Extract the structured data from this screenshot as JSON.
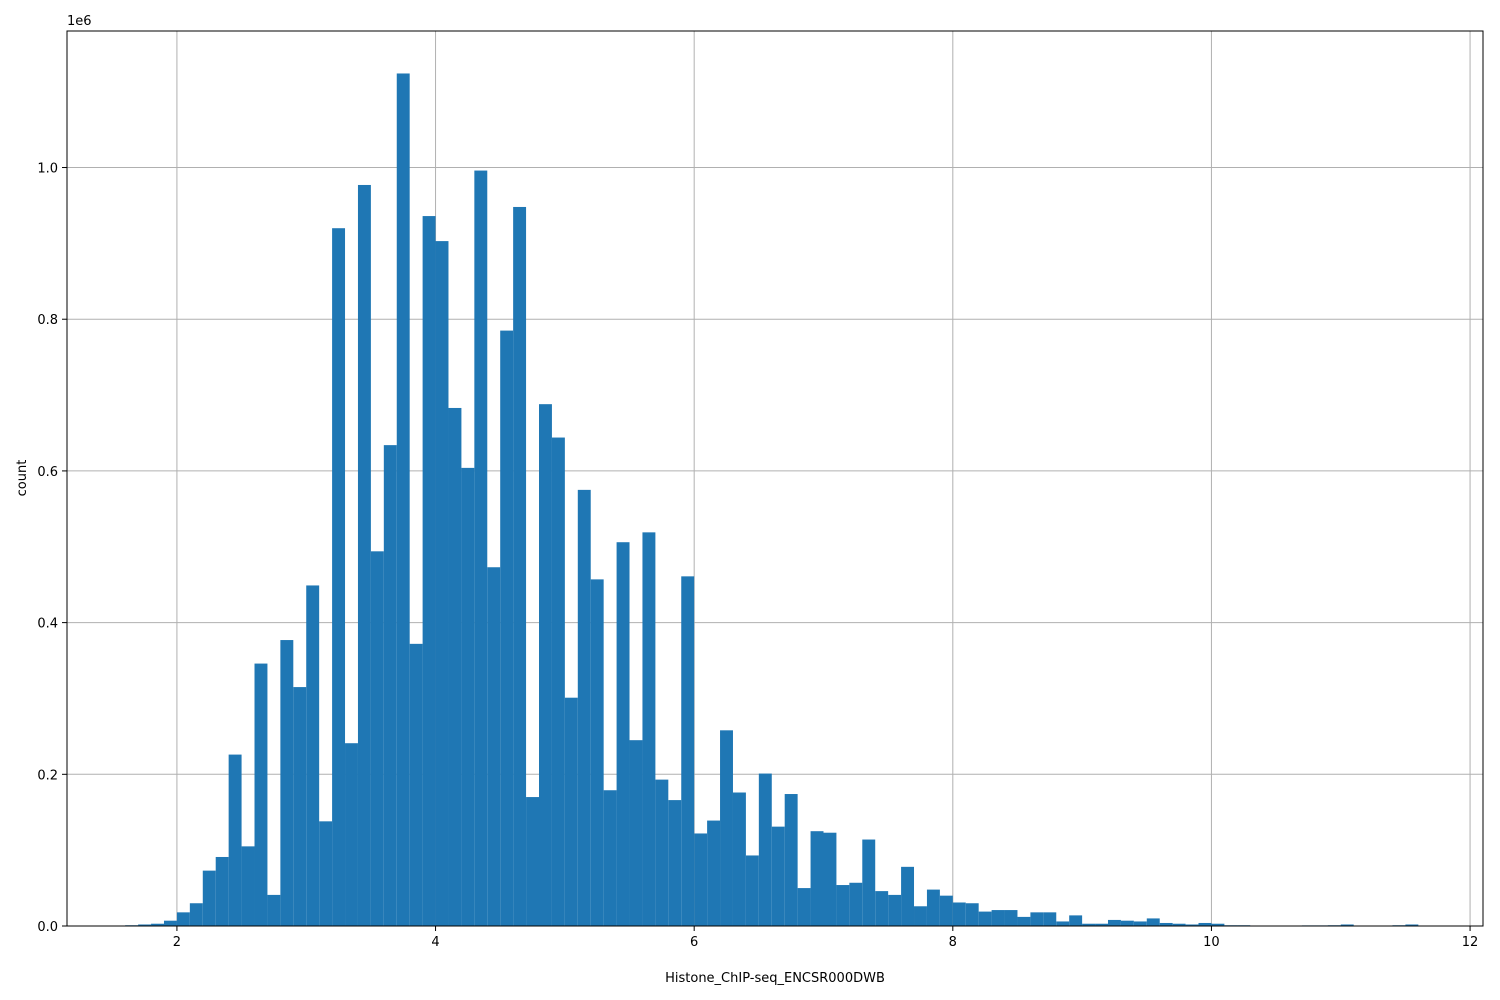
{
  "chart_data": {
    "type": "histogram",
    "title": "",
    "xlabel": "Histone_ChIP-seq_ENCSR000DWB",
    "ylabel": "count",
    "y_offset_label": "1e6",
    "xlim": [
      1.15,
      12.1
    ],
    "ylim": [
      0,
      1.18
    ],
    "y_unit_multiplier": 1000000,
    "grid": true,
    "bar_color": "#1f77b4",
    "x_ticks": [
      2,
      4,
      6,
      8,
      10,
      12
    ],
    "x_tick_labels": [
      "2",
      "4",
      "6",
      "8",
      "10",
      "12"
    ],
    "y_ticks": [
      0,
      0.2,
      0.4,
      0.6,
      0.8,
      1.0
    ],
    "y_tick_labels": [
      "0.0",
      "0.2",
      "0.4",
      "0.6",
      "0.8",
      "1.0"
    ],
    "bin_start": 1.6,
    "bin_width": 0.1,
    "values": [
      0.001,
      0.002,
      0.003,
      0.007,
      0.018,
      0.03,
      0.073,
      0.091,
      0.226,
      0.105,
      0.346,
      0.041,
      0.377,
      0.315,
      0.449,
      0.138,
      0.92,
      0.241,
      0.977,
      0.494,
      0.634,
      1.124,
      0.372,
      0.936,
      0.903,
      0.683,
      0.604,
      0.996,
      0.473,
      0.785,
      0.948,
      0.17,
      0.688,
      0.644,
      0.301,
      0.575,
      0.457,
      0.179,
      0.506,
      0.245,
      0.519,
      0.193,
      0.166,
      0.461,
      0.122,
      0.139,
      0.258,
      0.176,
      0.093,
      0.201,
      0.131,
      0.174,
      0.05,
      0.125,
      0.123,
      0.054,
      0.057,
      0.114,
      0.046,
      0.041,
      0.078,
      0.026,
      0.048,
      0.04,
      0.031,
      0.03,
      0.019,
      0.021,
      0.021,
      0.012,
      0.018,
      0.018,
      0.006,
      0.014,
      0.003,
      0.003,
      0.008,
      0.007,
      0.006,
      0.01,
      0.004,
      0.003,
      0.002,
      0.004,
      0.003,
      0.001,
      0.001,
      0.0005,
      0.0005,
      0.0003,
      0.0003,
      0.0008,
      0.0008,
      0.001,
      0.002,
      0.0005,
      0.0003,
      0.0003,
      0.001,
      0.002
    ]
  }
}
